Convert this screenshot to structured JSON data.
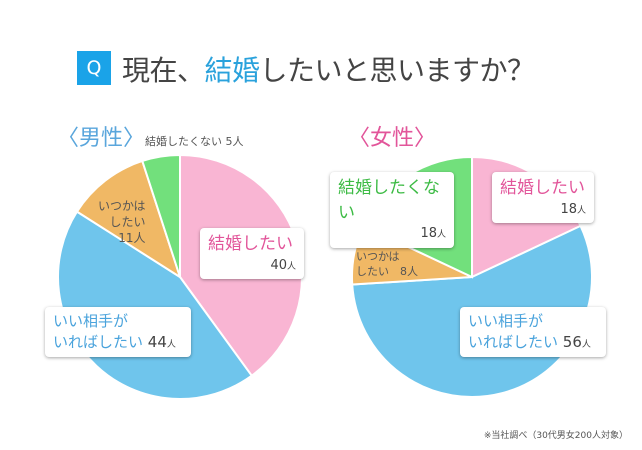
{
  "title": {
    "q": "Q",
    "pre": "現在、",
    "highlight": "結婚",
    "post": "したいと思いますか？"
  },
  "footnote": "※当社調べ（30代男女200人対象）",
  "colors": {
    "want": "#f9b5d3",
    "if_partner": "#6fc5ec",
    "someday": "#f0b865",
    "not_want": "#72e07c",
    "pink_text": "#e2559a",
    "blue_text": "#4aa3dc",
    "green_text": "#3dbb45"
  },
  "chart_data": [
    {
      "type": "pie",
      "title": "〈男性〉",
      "unit": "人",
      "categories": [
        "結婚したい",
        "いい相手がいればしたい",
        "いつかはしたい",
        "結婚したくない"
      ],
      "values": [
        40,
        44,
        11,
        5
      ],
      "labels": {
        "want": "結婚したい",
        "if_partner_1": "いい相手が",
        "if_partner_2": "いればしたい",
        "someday_1": "いつかは",
        "someday_2": "したい",
        "not_want": "結婚したくない"
      }
    },
    {
      "type": "pie",
      "title": "〈女性〉",
      "unit": "人",
      "categories": [
        "結婚したい",
        "いい相手がいればしたい",
        "いつかはしたい",
        "結婚したくない"
      ],
      "values": [
        18,
        56,
        8,
        18
      ],
      "labels": {
        "want": "結婚したい",
        "if_partner_1": "いい相手が",
        "if_partner_2": "いればしたい",
        "someday_1": "いつかは",
        "someday_2": "したい",
        "not_want": "結婚したくない"
      }
    }
  ]
}
